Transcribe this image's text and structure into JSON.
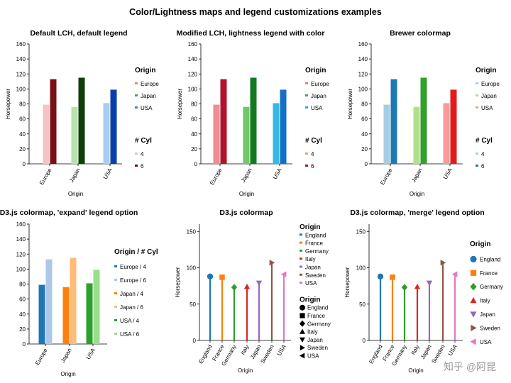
{
  "figure": {
    "title": "Color/Lightness maps and legend customizations examples",
    "watermark": "知乎 @阿昆"
  },
  "chart_data": [
    {
      "type": "bar",
      "title": "Default LCH, default legend",
      "xlabel": "Origin",
      "ylabel": "Horsepower",
      "categories": [
        "Europe",
        "Japan",
        "USA"
      ],
      "ylim": [
        0,
        160
      ],
      "yticks": [
        "0",
        "20",
        "40",
        "60",
        "80",
        "100",
        "120",
        "140",
        "160"
      ],
      "series": [
        {
          "name": "4",
          "values": [
            79,
            76,
            81
          ],
          "colors": [
            "#f5c2c6",
            "#b6e3a8",
            "#a9ccf2"
          ]
        },
        {
          "name": "6",
          "values": [
            113,
            115,
            99
          ],
          "colors": [
            "#7a0f16",
            "#0f3d0c",
            "#0a3fa8"
          ]
        }
      ],
      "legend": [
        {
          "title": "Origin",
          "items": [
            {
              "label": "Europe",
              "color": "#e8808a"
            },
            {
              "label": "Japan",
              "color": "#36b04b"
            },
            {
              "label": "USA",
              "color": "#3a86cf"
            }
          ]
        },
        {
          "title": "# Cyl",
          "items": [
            {
              "label": "4",
              "color": "#cccccc"
            },
            {
              "label": "6",
              "color": "#6e0f17"
            }
          ]
        }
      ]
    },
    {
      "type": "bar",
      "title": "Modified LCH, lightness legend with color",
      "xlabel": "Origin",
      "ylabel": "Horsepower",
      "categories": [
        "Europe",
        "Japan",
        "USA"
      ],
      "ylim": [
        0,
        160
      ],
      "yticks": [
        "0",
        "20",
        "40",
        "60",
        "80",
        "100",
        "120",
        "140",
        "160"
      ],
      "series": [
        {
          "name": "4",
          "values": [
            79,
            76,
            81
          ],
          "colors": [
            "#f08c92",
            "#6fc76a",
            "#35b7e8"
          ]
        },
        {
          "name": "6",
          "values": [
            113,
            115,
            99
          ],
          "colors": [
            "#b3122b",
            "#137a22",
            "#1270c9"
          ]
        }
      ],
      "legend": [
        {
          "title": "Origin",
          "items": [
            {
              "label": "Europe",
              "color": "#e8808a"
            },
            {
              "label": "Japan",
              "color": "#36b04b"
            },
            {
              "label": "USA",
              "color": "#2fa8e0"
            }
          ]
        },
        {
          "title": "# Cyl",
          "items": [
            {
              "label": "4",
              "color": "#f29e7a"
            },
            {
              "label": "6",
              "color": "#b3122b"
            }
          ]
        }
      ]
    },
    {
      "type": "bar",
      "title": "Brewer colormap",
      "xlabel": "Origin",
      "ylabel": "Horsepower",
      "categories": [
        "Europe",
        "Japan",
        "USA"
      ],
      "ylim": [
        0,
        160
      ],
      "yticks": [
        "0",
        "20",
        "40",
        "60",
        "80",
        "100",
        "120",
        "140",
        "160"
      ],
      "series": [
        {
          "name": "4",
          "values": [
            79,
            76,
            81
          ],
          "colors": [
            "#a6cee3",
            "#b2df8a",
            "#fb9a99"
          ]
        },
        {
          "name": "6",
          "values": [
            113,
            115,
            99
          ],
          "colors": [
            "#1f78b4",
            "#33a02c",
            "#e31a1c"
          ]
        }
      ],
      "legend": [
        {
          "title": "Origin",
          "items": [
            {
              "label": "Europe",
              "color": "#a6cee3"
            },
            {
              "label": "Japan",
              "color": "#b2df8a"
            },
            {
              "label": "USA",
              "color": "#fb9a99"
            }
          ]
        },
        {
          "title": "# Cyl",
          "items": [
            {
              "label": "4",
              "color": "#a6cee3"
            },
            {
              "label": "6",
              "color": "#1f78b4"
            }
          ]
        }
      ]
    },
    {
      "type": "bar",
      "title": "D3.js colormap, 'expand' legend option",
      "xlabel": "Origin",
      "ylabel": "",
      "categories": [
        "Europe",
        "Japan",
        "USA"
      ],
      "ylim": [
        0,
        160
      ],
      "yticks": [
        "0",
        "20",
        "40",
        "60",
        "80",
        "100",
        "120",
        "140",
        "160"
      ],
      "series": [
        {
          "name": "4",
          "values": [
            79,
            76,
            81
          ],
          "colors": [
            "#1f77b4",
            "#ff7f0e",
            "#2ca02c"
          ]
        },
        {
          "name": "6",
          "values": [
            113,
            115,
            99
          ],
          "colors": [
            "#aec7e8",
            "#ffbb78",
            "#98df8a"
          ]
        }
      ],
      "legend": [
        {
          "title": "Origin / # Cyl",
          "items": [
            {
              "label": "Europe / 4",
              "color": "#1f77b4"
            },
            {
              "label": "Europe / 6",
              "color": "#aec7e8"
            },
            {
              "label": "Japan / 4",
              "color": "#ff7f0e"
            },
            {
              "label": "Japan / 6",
              "color": "#ffbb78"
            },
            {
              "label": "USA / 4",
              "color": "#2ca02c"
            },
            {
              "label": "USA / 6",
              "color": "#98df8a"
            }
          ]
        }
      ]
    },
    {
      "type": "scatter",
      "title": "D3.js colormap",
      "xlabel": "Origin",
      "ylabel": "Horsepower",
      "categories": [
        "England",
        "France",
        "Germany",
        "Italy",
        "Japan",
        "Sweden",
        "USA"
      ],
      "values": [
        88,
        87,
        73,
        74,
        79,
        107,
        91
      ],
      "colors": [
        "#1f77b4",
        "#ff7f0e",
        "#2ca02c",
        "#d62728",
        "#9467bd",
        "#8c564b",
        "#e377c2"
      ],
      "markers": [
        "circle",
        "square",
        "diamond",
        "triangle-up",
        "triangle-down",
        "triangle-right",
        "triangle-left"
      ],
      "ylim": [
        0,
        160
      ],
      "yticks": [
        "0",
        "50",
        "100",
        "150"
      ],
      "legend": [
        {
          "title": "Origin",
          "kind": "color",
          "items": [
            {
              "label": "England",
              "color": "#1f77b4"
            },
            {
              "label": "France",
              "color": "#ff7f0e"
            },
            {
              "label": "Germany",
              "color": "#2ca02c"
            },
            {
              "label": "Italy",
              "color": "#d62728"
            },
            {
              "label": "Japan",
              "color": "#9467bd"
            },
            {
              "label": "Sweden",
              "color": "#8c564b"
            },
            {
              "label": "USA",
              "color": "#e377c2"
            }
          ]
        },
        {
          "title": "Origin",
          "kind": "marker",
          "items": [
            {
              "label": "England",
              "marker": "circle"
            },
            {
              "label": "France",
              "marker": "square"
            },
            {
              "label": "Germany",
              "marker": "diamond"
            },
            {
              "label": "Italy",
              "marker": "triangle-up"
            },
            {
              "label": "Japan",
              "marker": "triangle-down"
            },
            {
              "label": "Sweden",
              "marker": "triangle-right"
            },
            {
              "label": "USA",
              "marker": "triangle-left"
            }
          ]
        }
      ]
    },
    {
      "type": "scatter",
      "title": "D3.js colormap, 'merge' legend option",
      "xlabel": "Origin",
      "ylabel": "Horsepower",
      "categories": [
        "England",
        "France",
        "Germany",
        "Italy",
        "Japan",
        "Sweden",
        "USA"
      ],
      "values": [
        88,
        87,
        73,
        74,
        79,
        107,
        91
      ],
      "colors": [
        "#1f77b4",
        "#ff7f0e",
        "#2ca02c",
        "#d62728",
        "#9467bd",
        "#8c564b",
        "#e377c2"
      ],
      "markers": [
        "circle",
        "square",
        "diamond",
        "triangle-up",
        "triangle-down",
        "triangle-right",
        "triangle-left"
      ],
      "ylim": [
        0,
        160
      ],
      "yticks": [
        "0",
        "50",
        "100",
        "150"
      ],
      "legend": [
        {
          "title": "Origin",
          "kind": "merged",
          "items": [
            {
              "label": "England",
              "color": "#1f77b4",
              "marker": "circle"
            },
            {
              "label": "France",
              "color": "#ff7f0e",
              "marker": "square"
            },
            {
              "label": "Germany",
              "color": "#2ca02c",
              "marker": "diamond"
            },
            {
              "label": "Italy",
              "color": "#d62728",
              "marker": "triangle-up"
            },
            {
              "label": "Japan",
              "color": "#9467bd",
              "marker": "triangle-down"
            },
            {
              "label": "Sweden",
              "color": "#8c564b",
              "marker": "triangle-right"
            },
            {
              "label": "USA",
              "color": "#e377c2",
              "marker": "triangle-left"
            }
          ]
        }
      ]
    }
  ]
}
